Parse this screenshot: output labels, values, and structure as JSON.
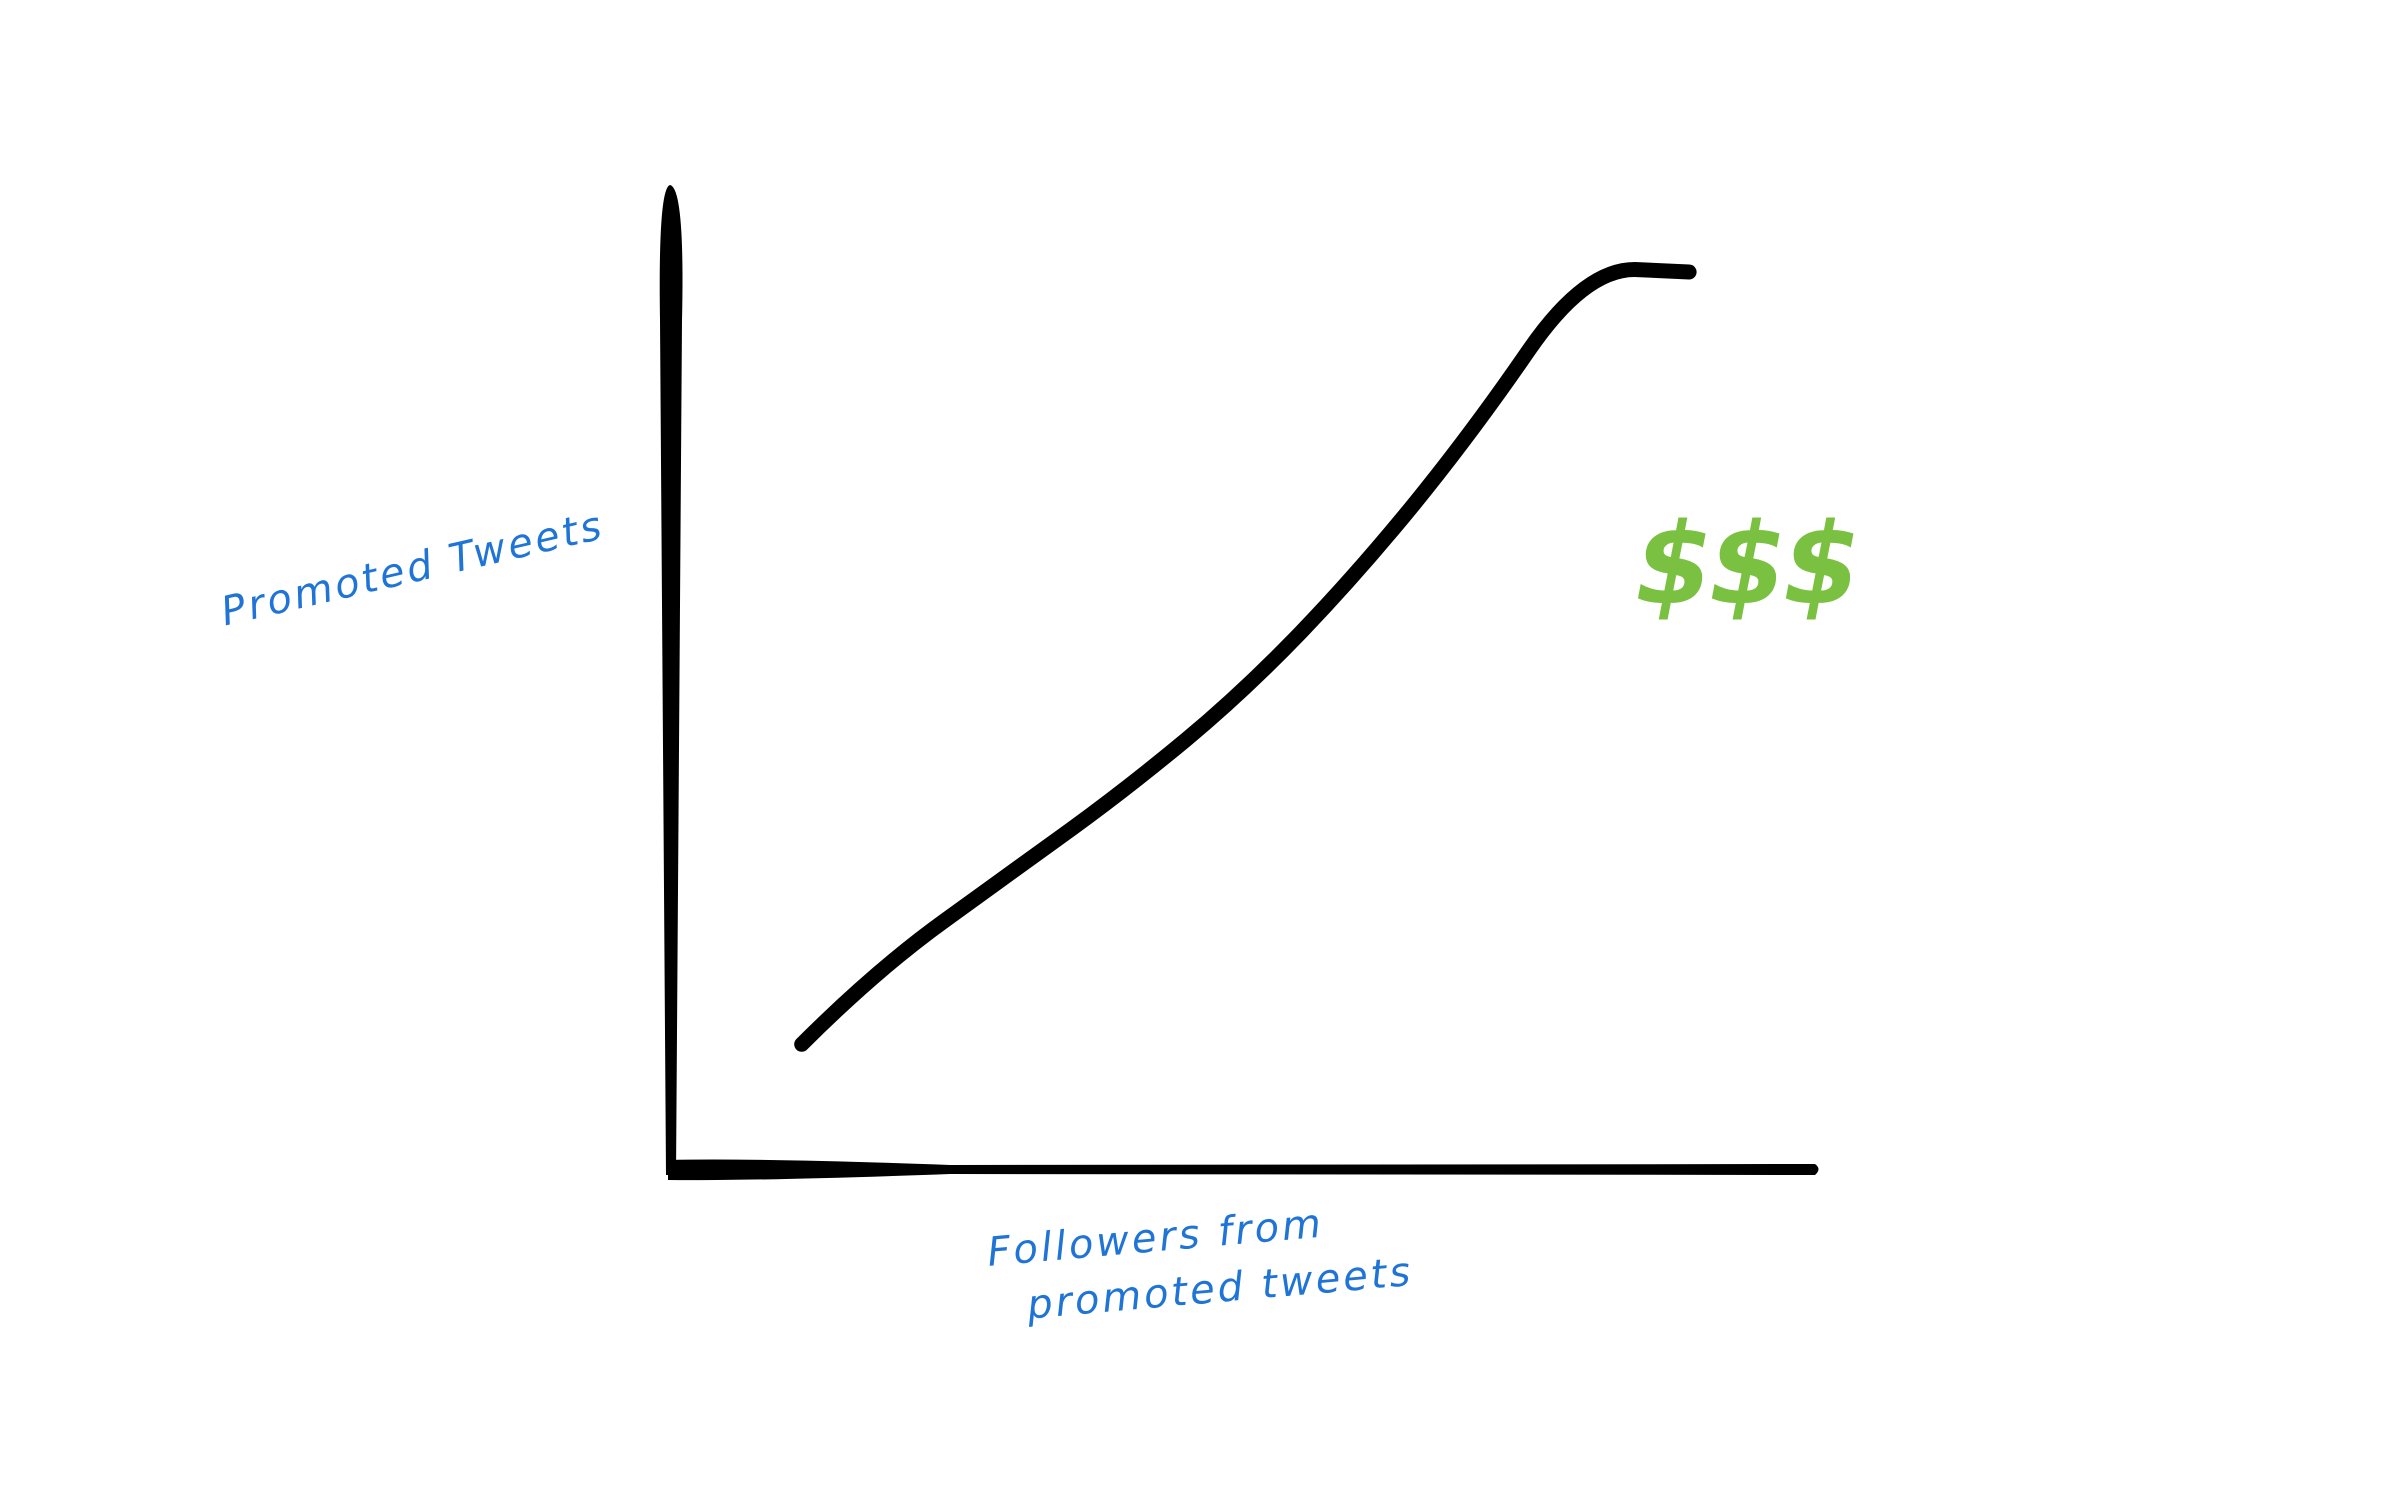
{
  "chart_data": {
    "type": "line",
    "title": "",
    "xlabel": "Followers from promoted tweets",
    "xlabel_lines": [
      "Followers from",
      "promoted tweets"
    ],
    "ylabel": "Promoted Tweets",
    "annotation": "$$$",
    "grid": false,
    "ticks": false,
    "colors": {
      "axes": "#000000",
      "curve": "#000000",
      "labels": "#1f74d6",
      "annotation": "#7ac142"
    },
    "series": [
      {
        "shape": "increasing convex curve",
        "x": [
          0.115,
          0.18,
          0.3,
          0.4,
          0.5,
          0.6,
          0.7,
          0.8,
          0.89
        ],
        "y": [
          0.125,
          0.2,
          0.3,
          0.384,
          0.48,
          0.6,
          0.742,
          0.91,
          0.905
        ]
      }
    ]
  }
}
